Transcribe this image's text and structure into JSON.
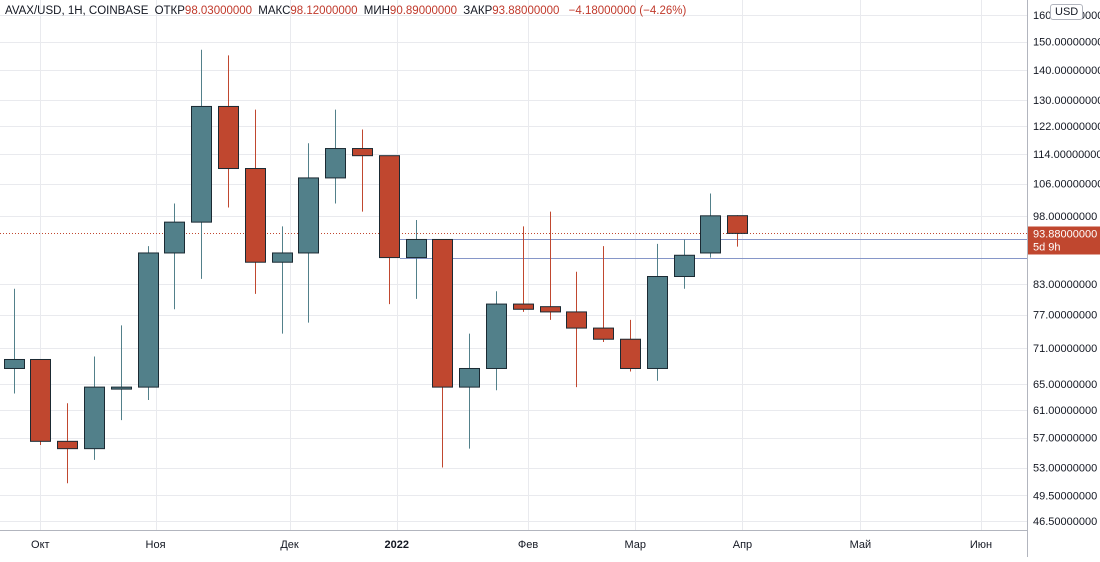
{
  "legend": {
    "symbol": "AVAX/USD, 1Н, COINBASE",
    "open_label": "ОТКР",
    "open_value": "98.03000000",
    "high_label": "МАКС",
    "high_value": "98.12000000",
    "low_label": "МИН",
    "low_value": "90.89000000",
    "close_label": "ЗАКР",
    "close_value": "93.88000000",
    "change": "−4.18000000 (−4.26%)"
  },
  "currency": "USD",
  "price_tag": {
    "price": "93.88000000",
    "countdown": "5d 9h"
  },
  "colors": {
    "up": "#52808a",
    "down": "#c0472f",
    "grid": "#e9eaee",
    "hline": "#8696c8",
    "tag": "#c0472f"
  },
  "chart_data": {
    "type": "candlestick",
    "title": "AVAX/USD, 1Н, COINBASE",
    "interval": "1W",
    "price_scale": "log",
    "yaxis_ticks": [
      "160.00000000",
      "150.00000000",
      "140.00000000",
      "130.00000000",
      "122.00000000",
      "114.00000000",
      "106.00000000",
      "98.00000000",
      "83.00000000",
      "77.00000000",
      "71.00000000",
      "65.00000000",
      "61.00000000",
      "57.00000000",
      "53.00000000",
      "49.50000000",
      "46.50000000"
    ],
    "ylim": [
      45.5,
      166
    ],
    "xaxis_labels": [
      {
        "label": "Окт",
        "index": 1.0
      },
      {
        "label": "Ноя",
        "index": 5.3
      },
      {
        "label": "Дек",
        "index": 10.3
      },
      {
        "label": "2022",
        "index": 14.3
      },
      {
        "label": "Фев",
        "index": 19.2
      },
      {
        "label": "Мар",
        "index": 23.2
      },
      {
        "label": "Апр",
        "index": 27.2
      },
      {
        "label": "Май",
        "index": 31.6
      },
      {
        "label": "Июн",
        "index": 36.1
      }
    ],
    "horizontal_lines": [
      92.5,
      88.5
    ],
    "last_price": 93.88,
    "candles": [
      {
        "o": 67.5,
        "h": 82.0,
        "l": 63.5,
        "c": 69.0
      },
      {
        "o": 69.0,
        "h": 69.0,
        "l": 56.0,
        "c": 56.5
      },
      {
        "o": 56.5,
        "h": 62.0,
        "l": 51.0,
        "c": 55.5
      },
      {
        "o": 55.5,
        "h": 69.5,
        "l": 54.0,
        "c": 64.5
      },
      {
        "o": 64.5,
        "h": 75.0,
        "l": 59.5,
        "c": 64.5
      },
      {
        "o": 64.5,
        "h": 91.0,
        "l": 62.5,
        "c": 89.5
      },
      {
        "o": 89.5,
        "h": 101.0,
        "l": 78.0,
        "c": 96.5
      },
      {
        "o": 96.5,
        "h": 147.0,
        "l": 84.0,
        "c": 128.0
      },
      {
        "o": 128.0,
        "h": 145.0,
        "l": 100.0,
        "c": 110.0
      },
      {
        "o": 110.0,
        "h": 127.0,
        "l": 81.0,
        "c": 87.5
      },
      {
        "o": 87.5,
        "h": 95.5,
        "l": 73.5,
        "c": 89.5
      },
      {
        "o": 89.5,
        "h": 117.0,
        "l": 75.5,
        "c": 107.5
      },
      {
        "o": 107.5,
        "h": 127.0,
        "l": 101.0,
        "c": 115.5
      },
      {
        "o": 115.5,
        "h": 121.0,
        "l": 99.0,
        "c": 113.5
      },
      {
        "o": 113.5,
        "h": 113.5,
        "l": 79.0,
        "c": 88.5
      },
      {
        "o": 88.5,
        "h": 97.0,
        "l": 80.0,
        "c": 92.5
      },
      {
        "o": 92.5,
        "h": 92.5,
        "l": 53.0,
        "c": 64.5
      },
      {
        "o": 64.5,
        "h": 73.5,
        "l": 55.5,
        "c": 67.5
      },
      {
        "o": 67.5,
        "h": 81.5,
        "l": 64.0,
        "c": 79.0
      },
      {
        "o": 79.0,
        "h": 95.5,
        "l": 77.5,
        "c": 78.0
      },
      {
        "o": 78.5,
        "h": 99.0,
        "l": 76.0,
        "c": 77.5
      },
      {
        "o": 77.5,
        "h": 85.5,
        "l": 64.5,
        "c": 74.5
      },
      {
        "o": 74.5,
        "h": 91.0,
        "l": 72.0,
        "c": 72.5
      },
      {
        "o": 72.5,
        "h": 76.0,
        "l": 67.0,
        "c": 67.5
      },
      {
        "o": 67.5,
        "h": 91.5,
        "l": 65.5,
        "c": 84.5
      },
      {
        "o": 84.5,
        "h": 92.5,
        "l": 82.0,
        "c": 89.0
      },
      {
        "o": 89.5,
        "h": 103.5,
        "l": 88.5,
        "c": 98.0
      },
      {
        "o": 98.03,
        "h": 98.12,
        "l": 90.89,
        "c": 93.88
      }
    ]
  }
}
